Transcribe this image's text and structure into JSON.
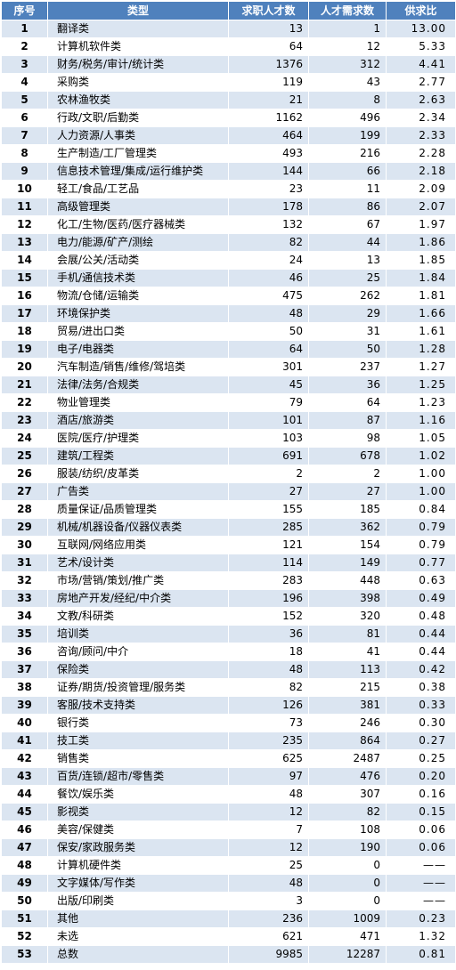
{
  "headers": [
    "序号",
    "类型",
    "求职人才数",
    "人才需求数",
    "供求比"
  ],
  "rows": [
    [
      "1",
      "翻译类",
      "13",
      "1",
      "13.00"
    ],
    [
      "2",
      "计算机软件类",
      "64",
      "12",
      "5.33"
    ],
    [
      "3",
      "财务/税务/审计/统计类",
      "1376",
      "312",
      "4.41"
    ],
    [
      "4",
      "采购类",
      "119",
      "43",
      "2.77"
    ],
    [
      "5",
      "农林渔牧类",
      "21",
      "8",
      "2.63"
    ],
    [
      "6",
      "行政/文职/后勤类",
      "1162",
      "496",
      "2.34"
    ],
    [
      "7",
      "人力资源/人事类",
      "464",
      "199",
      "2.33"
    ],
    [
      "8",
      "生产制造/工厂管理类",
      "493",
      "216",
      "2.28"
    ],
    [
      "9",
      "信息技术管理/集成/运行维护类",
      "144",
      "66",
      "2.18"
    ],
    [
      "10",
      "轻工/食品/工艺品",
      "23",
      "11",
      "2.09"
    ],
    [
      "11",
      "高级管理类",
      "178",
      "86",
      "2.07"
    ],
    [
      "12",
      "化工/生物/医药/医疗器械类",
      "132",
      "67",
      "1.97"
    ],
    [
      "13",
      "电力/能源/矿产/测绘",
      "82",
      "44",
      "1.86"
    ],
    [
      "14",
      "会展/公关/活动类",
      "24",
      "13",
      "1.85"
    ],
    [
      "15",
      "手机/通信技术类",
      "46",
      "25",
      "1.84"
    ],
    [
      "16",
      "物流/仓储/运输类",
      "475",
      "262",
      "1.81"
    ],
    [
      "17",
      "环境保护类",
      "48",
      "29",
      "1.66"
    ],
    [
      "18",
      "贸易/进出口类",
      "50",
      "31",
      "1.61"
    ],
    [
      "19",
      "电子/电器类",
      "64",
      "50",
      "1.28"
    ],
    [
      "20",
      "汽车制造/销售/维修/驾培类",
      "301",
      "237",
      "1.27"
    ],
    [
      "21",
      "法律/法务/合规类",
      "45",
      "36",
      "1.25"
    ],
    [
      "22",
      "物业管理类",
      "79",
      "64",
      "1.23"
    ],
    [
      "23",
      "酒店/旅游类",
      "101",
      "87",
      "1.16"
    ],
    [
      "24",
      "医院/医疗/护理类",
      "103",
      "98",
      "1.05"
    ],
    [
      "25",
      "建筑/工程类",
      "691",
      "678",
      "1.02"
    ],
    [
      "26",
      "服装/纺织/皮革类",
      "2",
      "2",
      "1.00"
    ],
    [
      "27",
      "广告类",
      "27",
      "27",
      "1.00"
    ],
    [
      "28",
      "质量保证/品质管理类",
      "155",
      "185",
      "0.84"
    ],
    [
      "29",
      "机械/机器设备/仪器仪表类",
      "285",
      "362",
      "0.79"
    ],
    [
      "30",
      "互联网/网络应用类",
      "121",
      "154",
      "0.79"
    ],
    [
      "31",
      "艺术/设计类",
      "114",
      "149",
      "0.77"
    ],
    [
      "32",
      "市场/营销/策划/推广类",
      "283",
      "448",
      "0.63"
    ],
    [
      "33",
      "房地产开发/经纪/中介类",
      "196",
      "398",
      "0.49"
    ],
    [
      "34",
      "文教/科研类",
      "152",
      "320",
      "0.48"
    ],
    [
      "35",
      "培训类",
      "36",
      "81",
      "0.44"
    ],
    [
      "36",
      "咨询/顾问/中介",
      "18",
      "41",
      "0.44"
    ],
    [
      "37",
      "保险类",
      "48",
      "113",
      "0.42"
    ],
    [
      "38",
      "证券/期货/投资管理/服务类",
      "82",
      "215",
      "0.38"
    ],
    [
      "39",
      "客服/技术支持类",
      "126",
      "381",
      "0.33"
    ],
    [
      "40",
      "银行类",
      "73",
      "246",
      "0.30"
    ],
    [
      "41",
      "技工类",
      "235",
      "864",
      "0.27"
    ],
    [
      "42",
      "销售类",
      "625",
      "2487",
      "0.25"
    ],
    [
      "43",
      "百货/连锁/超市/零售类",
      "97",
      "476",
      "0.20"
    ],
    [
      "44",
      "餐饮/娱乐类",
      "48",
      "307",
      "0.16"
    ],
    [
      "45",
      "影视类",
      "12",
      "82",
      "0.15"
    ],
    [
      "46",
      "美容/保健类",
      "7",
      "108",
      "0.06"
    ],
    [
      "47",
      "保安/家政服务类",
      "12",
      "190",
      "0.06"
    ],
    [
      "48",
      "计算机硬件类",
      "25",
      "0",
      "——"
    ],
    [
      "49",
      "文字媒体/写作类",
      "48",
      "0",
      "——"
    ],
    [
      "50",
      "出版/印刷类",
      "3",
      "0",
      "——"
    ],
    [
      "51",
      "其他",
      "236",
      "1009",
      "0.23"
    ],
    [
      "52",
      "未选",
      "621",
      "471",
      "1.32"
    ],
    [
      "53",
      "总数",
      "9985",
      "12287",
      "0.81"
    ]
  ],
  "colors": {
    "header_bg": "#4f81bd",
    "header_text": "#ffffff",
    "row_odd_bg": "#dbe5f1",
    "row_even_bg": "#ffffff"
  }
}
